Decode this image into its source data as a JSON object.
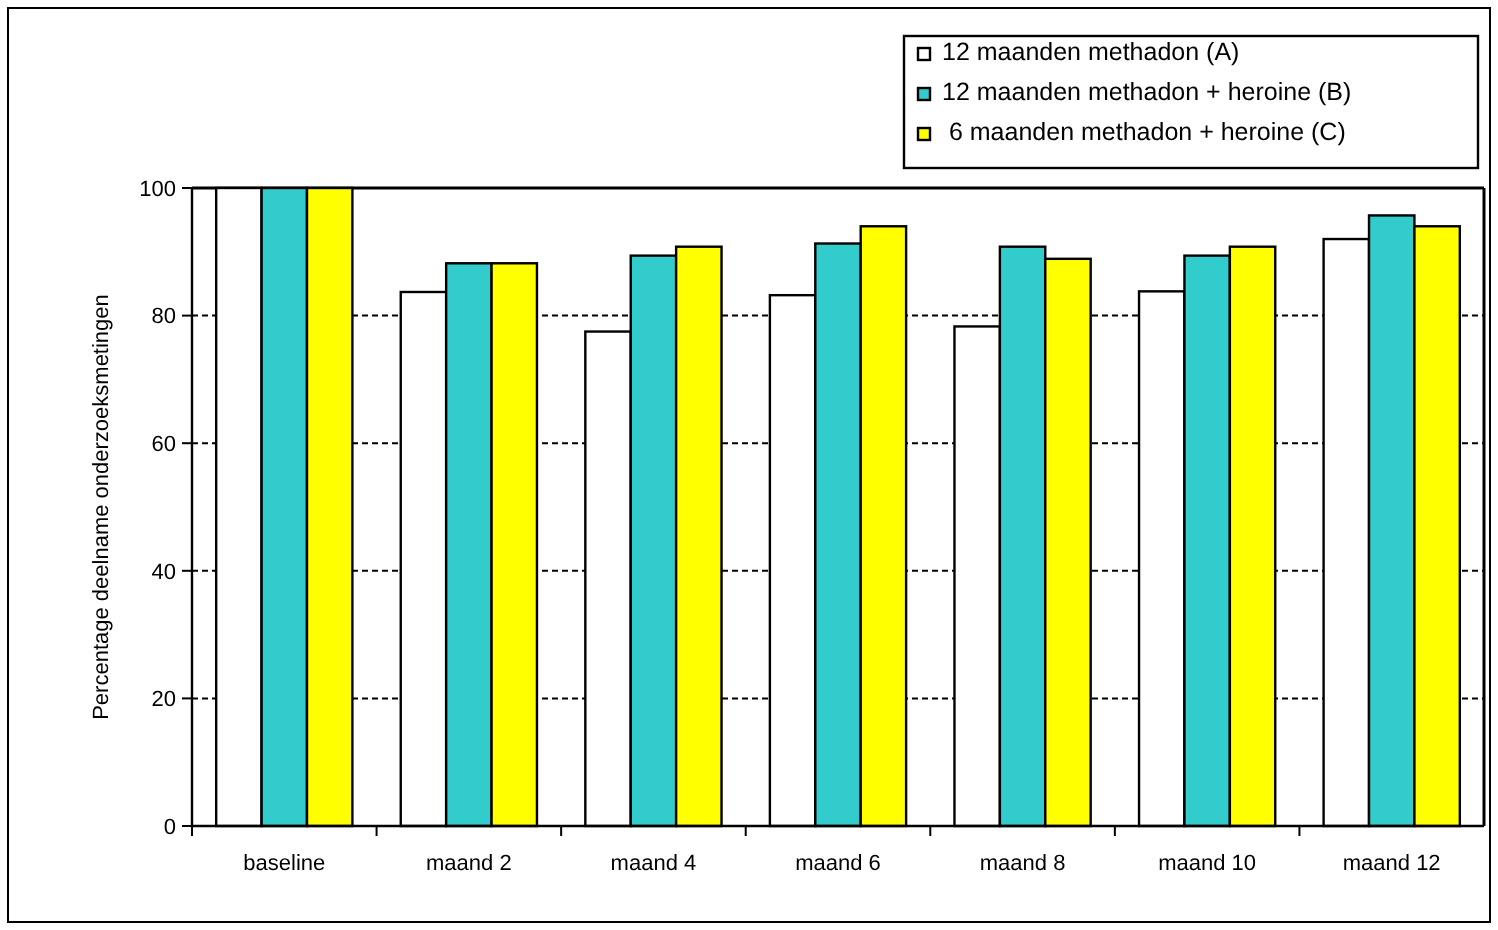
{
  "chart_data": {
    "type": "bar",
    "ylabel": "Percentage deelname onderzoeksmetingen",
    "categories": [
      "baseline",
      "maand 2",
      "maand 4",
      "maand 6",
      "maand 8",
      "maand 10",
      "maand 12"
    ],
    "series": [
      {
        "name": "12 maanden methadon (A)",
        "color": "#ffffff",
        "values": [
          100,
          83.7,
          77.5,
          83.2,
          78.3,
          83.8,
          92.0
        ]
      },
      {
        "name": "12 maanden methadon + heroine (B)",
        "color": "#33cccc",
        "values": [
          100,
          88.2,
          89.4,
          91.3,
          90.8,
          89.4,
          95.7
        ]
      },
      {
        "name": " 6 maanden methadon + heroine (C)",
        "color": "#ffff00",
        "values": [
          100,
          88.2,
          90.8,
          94.0,
          88.9,
          90.8,
          94.0
        ]
      }
    ],
    "ylim": [
      0,
      100
    ],
    "yticks": [
      0,
      20,
      40,
      60,
      80,
      100
    ],
    "grid": "y",
    "legend": "top right"
  }
}
